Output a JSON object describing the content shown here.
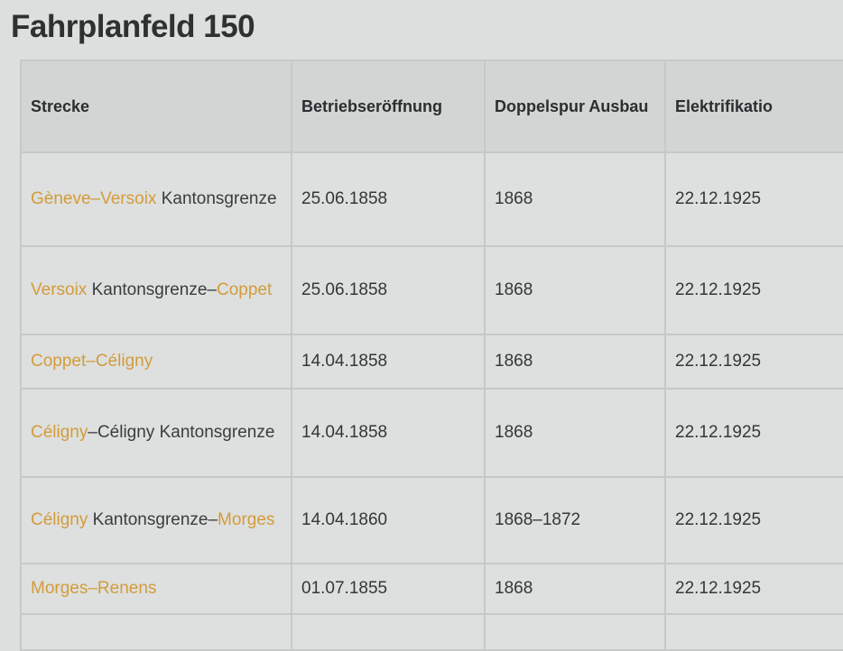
{
  "title": "Fahrplanfeld 150",
  "colors": {
    "link": "#d49b3c",
    "text": "#3a3c3e",
    "header_bg": "#d2d5d4"
  },
  "headers": [
    "Strecke",
    "Betriebseröffnung",
    "Doppelspur Ausbau",
    "Elektrifikatio"
  ],
  "rows": [
    {
      "strecke": [
        {
          "t": "Gèneve–Versoix",
          "link": true
        },
        {
          "t": " Kantonsgrenze",
          "link": false
        }
      ],
      "eroeffnung": "25.06.1858",
      "doppelspur": "1868",
      "elektrifikation": "22.12.1925"
    },
    {
      "strecke": [
        {
          "t": "Versoix",
          "link": true
        },
        {
          "t": " Kantonsgrenze–",
          "link": false
        },
        {
          "t": "Coppet",
          "link": true
        }
      ],
      "eroeffnung": "25.06.1858",
      "doppelspur": "1868",
      "elektrifikation": "22.12.1925"
    },
    {
      "strecke": [
        {
          "t": "Coppet–Céligny",
          "link": true
        }
      ],
      "eroeffnung": "14.04.1858",
      "doppelspur": "1868",
      "elektrifikation": "22.12.1925"
    },
    {
      "strecke": [
        {
          "t": "Céligny",
          "link": true
        },
        {
          "t": "–Céligny Kantonsgrenze",
          "link": false
        }
      ],
      "eroeffnung": "14.04.1858",
      "doppelspur": "1868",
      "elektrifikation": "22.12.1925"
    },
    {
      "strecke": [
        {
          "t": "Céligny",
          "link": true
        },
        {
          "t": " Kantonsgrenze–",
          "link": false
        },
        {
          "t": "Morges",
          "link": true
        }
      ],
      "eroeffnung": "14.04.1860",
      "doppelspur": "1868–1872",
      "elektrifikation": "22.12.1925"
    },
    {
      "strecke": [
        {
          "t": "Morges–Renens",
          "link": true
        }
      ],
      "eroeffnung": "01.07.1855",
      "doppelspur": "1868",
      "elektrifikation": "22.12.1925"
    }
  ]
}
